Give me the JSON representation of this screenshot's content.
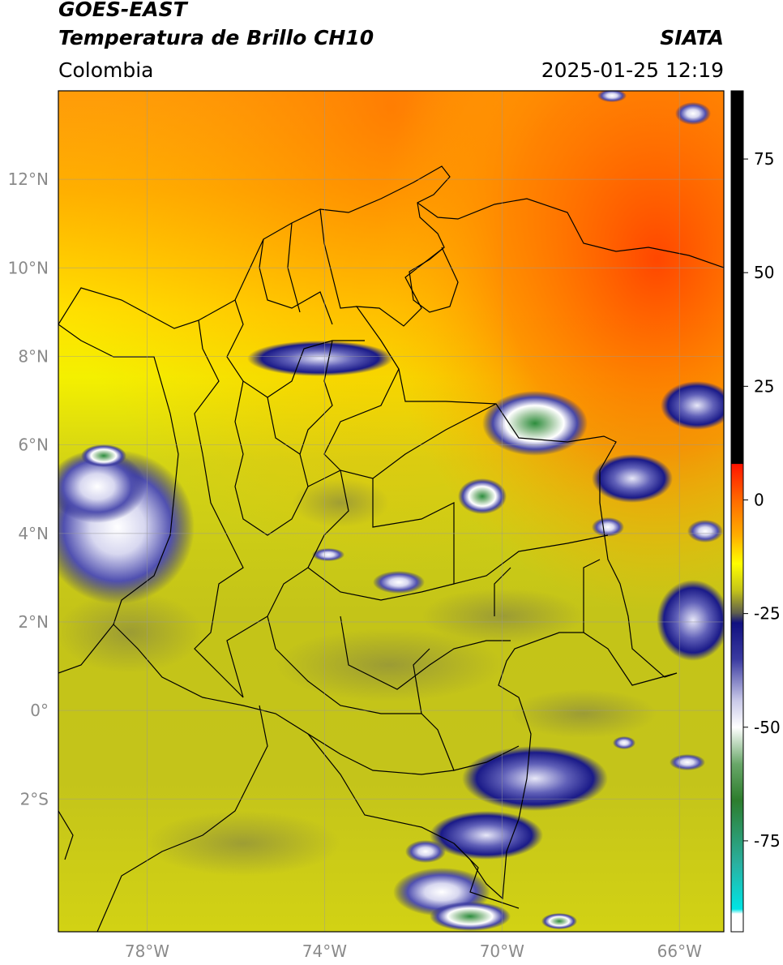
{
  "header": {
    "satellite": "GOES-EAST",
    "product": "Temperatura de Brillo CH10",
    "region": "Colombia",
    "agency": "SIATA",
    "datetime": "2025-01-25 12:19"
  },
  "map": {
    "lon_range": [
      -80,
      -65
    ],
    "lat_range": [
      -5,
      14
    ],
    "lon_ticks": [
      {
        "value": -78,
        "label": "78°W"
      },
      {
        "value": -74,
        "label": "74°W"
      },
      {
        "value": -70,
        "label": "70°W"
      },
      {
        "value": -66,
        "label": "66°W"
      }
    ],
    "lat_ticks": [
      {
        "value": 12,
        "label": "12°N"
      },
      {
        "value": 10,
        "label": "10°N"
      },
      {
        "value": 8,
        "label": "8°N"
      },
      {
        "value": 6,
        "label": "6°N"
      },
      {
        "value": 4,
        "label": "4°N"
      },
      {
        "value": 2,
        "label": "2°N"
      },
      {
        "value": 0,
        "label": "0°"
      },
      {
        "value": -2,
        "label": "2°S"
      }
    ],
    "gridlines": true
  },
  "colorbar": {
    "range": [
      -95,
      90
    ],
    "ticks": [
      {
        "value": 75,
        "label": "75"
      },
      {
        "value": 50,
        "label": "50"
      },
      {
        "value": 25,
        "label": "25"
      },
      {
        "value": 0,
        "label": "0"
      },
      {
        "value": -25,
        "label": "-25"
      },
      {
        "value": -50,
        "label": "-50"
      },
      {
        "value": -75,
        "label": "-75"
      }
    ],
    "stops": [
      {
        "value": 90,
        "color": "#000000"
      },
      {
        "value": 8,
        "color": "#000000"
      },
      {
        "value": 7.9,
        "color": "#ff1400"
      },
      {
        "value": 0,
        "color": "#ff6a00"
      },
      {
        "value": -8,
        "color": "#ffb000"
      },
      {
        "value": -14,
        "color": "#ffff00"
      },
      {
        "value": -20,
        "color": "#c2c21a"
      },
      {
        "value": -25,
        "color": "#5a5a50"
      },
      {
        "value": -27,
        "color": "#101080"
      },
      {
        "value": -35,
        "color": "#3a3aa0"
      },
      {
        "value": -44,
        "color": "#c8c8e8"
      },
      {
        "value": -50,
        "color": "#ffffff"
      },
      {
        "value": -58,
        "color": "#6aa86a"
      },
      {
        "value": -66,
        "color": "#2d7d2d"
      },
      {
        "value": -80,
        "color": "#2ab0a0"
      },
      {
        "value": -90,
        "color": "#00e5e5"
      },
      {
        "value": -91,
        "color": "#ffffff"
      },
      {
        "value": -95,
        "color": "#ffffff"
      }
    ]
  }
}
